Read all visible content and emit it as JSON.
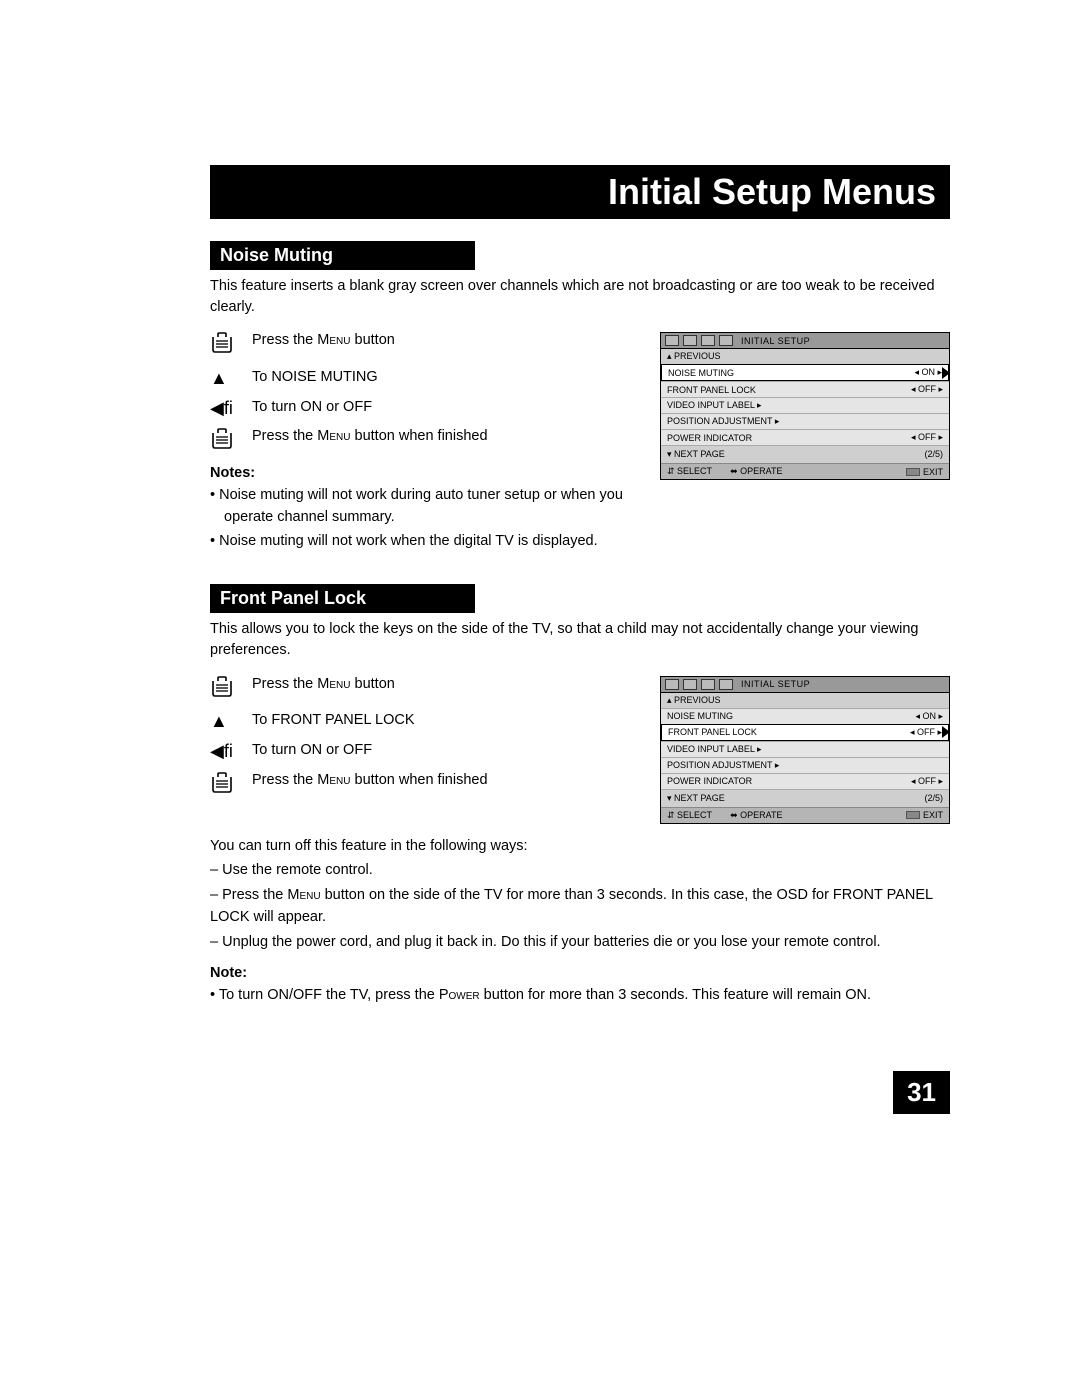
{
  "pageTitle": "Initial Setup Menus",
  "pageNumber": "31",
  "sections": [
    {
      "title": "Noise Muting",
      "description": "This feature inserts a blank gray screen over channels which are not broadcasting or are too weak to be received clearly.",
      "steps": [
        {
          "iconType": "menu",
          "textPre": "Press the ",
          "sc": "Menu",
          "textPost": " button"
        },
        {
          "iconType": "tri-up",
          "text": "To NOISE MUTING"
        },
        {
          "iconType": "tri-leftright",
          "text": "To turn ON or OFF"
        },
        {
          "iconType": "menu",
          "textPre": "Press the ",
          "sc": "Menu",
          "textPost": " button when finished"
        }
      ],
      "notesTitle": "Notes:",
      "notes": [
        "• Noise muting will not work during auto tuner setup or when you operate channel summary.",
        "• Noise muting will not work when the digital TV is displayed."
      ],
      "osd": {
        "headerText": "INITIAL SETUP",
        "previous": "▴ PREVIOUS",
        "rows": [
          {
            "label": "NOISE MUTING",
            "value": "◂ ON ▸",
            "highlight": true,
            "cursor": true
          },
          {
            "label": "FRONT PANEL LOCK",
            "value": "◂ OFF ▸"
          },
          {
            "label": "VIDEO INPUT LABEL ▸",
            "value": ""
          },
          {
            "label": "POSITION ADJUSTMENT ▸",
            "value": ""
          },
          {
            "label": "POWER INDICATOR",
            "value": "◂ OFF ▸"
          }
        ],
        "nextLabel": "▾ NEXT PAGE",
        "pageInfo": "(2/5)",
        "footer": {
          "select": "⇵ SELECT",
          "operate": "⬌ OPERATE",
          "exit": "EXIT"
        }
      }
    },
    {
      "title": "Front Panel Lock",
      "description": "This allows you to lock the keys on the side of the TV, so that a child may not accidentally change your viewing preferences.",
      "steps": [
        {
          "iconType": "menu",
          "textPre": "Press the ",
          "sc": "Menu",
          "textPost": " button"
        },
        {
          "iconType": "tri-up",
          "text": "To FRONT PANEL LOCK"
        },
        {
          "iconType": "tri-leftright",
          "text": "To turn ON or OFF"
        },
        {
          "iconType": "menu",
          "textPre": "Press the ",
          "sc": "Menu",
          "textPost": " button when finished"
        }
      ],
      "extraLines": [
        "You can turn off this feature in the following ways:",
        "– Use the remote control.",
        "– Press the MENU button on the side of the TV for more than 3 seconds. In this case, the OSD for FRONT PANEL LOCK will appear.",
        "– Unplug the power cord, and plug it back in. Do this if your batteries die or you lose your remote control."
      ],
      "notesTitle": "Note:",
      "notes": [
        "• To turn ON/OFF the TV, press the POWER button for more than 3 seconds. This feature will remain ON."
      ],
      "osd": {
        "headerText": "INITIAL SETUP",
        "previous": "▴ PREVIOUS",
        "rows": [
          {
            "label": "NOISE MUTING",
            "value": "◂ ON ▸"
          },
          {
            "label": "FRONT PANEL LOCK",
            "value": "◂ OFF ▸",
            "highlight": true,
            "cursor": true
          },
          {
            "label": "VIDEO INPUT LABEL ▸",
            "value": ""
          },
          {
            "label": "POSITION ADJUSTMENT ▸",
            "value": ""
          },
          {
            "label": "POWER INDICATOR",
            "value": "◂ OFF ▸"
          }
        ],
        "nextLabel": "▾ NEXT PAGE",
        "pageInfo": "(2/5)",
        "footer": {
          "select": "⇵ SELECT",
          "operate": "⬌ OPERATE",
          "exit": "EXIT"
        }
      }
    }
  ]
}
